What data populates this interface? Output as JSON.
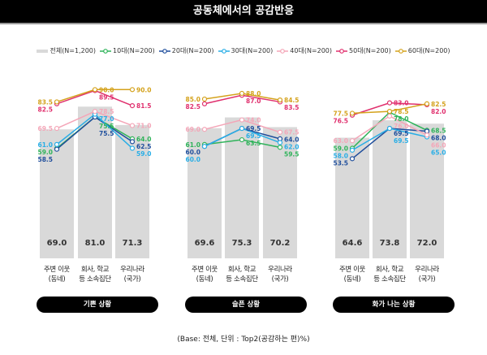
{
  "title": "공동체에서의 공감반응",
  "footnote": "(Base: 전체, 단위 : Top2(공감하는 편)%)",
  "chart_data": [
    {
      "type": "bar+line",
      "title": "기쁜 상황",
      "categories": [
        "주변 이웃\n(동네)",
        "회사, 학교\n등 소속집단",
        "우리나라\n(국가)"
      ],
      "bars": {
        "name": "전체(N=1,200)",
        "values": [
          69.0,
          81.0,
          71.3
        ]
      },
      "series": [
        {
          "name": "10대(N=200)",
          "values": [
            59.0,
            75.5,
            64.0
          ]
        },
        {
          "name": "20대(N=200)",
          "values": [
            58.5,
            75.5,
            62.5
          ]
        },
        {
          "name": "30대(N=200)",
          "values": [
            61.0,
            77.0,
            59.0
          ]
        },
        {
          "name": "40대(N=200)",
          "values": [
            69.5,
            78.5,
            71.0
          ]
        },
        {
          "name": "50대(N=200)",
          "values": [
            82.5,
            89.5,
            81.5
          ]
        },
        {
          "name": "60대(N=200)",
          "values": [
            83.5,
            90.0,
            90.0
          ]
        }
      ]
    },
    {
      "type": "bar+line",
      "title": "슬픈 상황",
      "categories": [
        "주변 이웃\n(동네)",
        "회사, 학교\n등 소속집단",
        "우리나라\n(국가)"
      ],
      "bars": {
        "name": "전체(N=1,200)",
        "values": [
          69.6,
          75.3,
          70.2
        ]
      },
      "series": [
        {
          "name": "10대(N=200)",
          "values": [
            61.0,
            63.5,
            59.5
          ]
        },
        {
          "name": "20대(N=200)",
          "values": [
            60.0,
            69.5,
            64.0
          ]
        },
        {
          "name": "30대(N=200)",
          "values": [
            60.0,
            69.5,
            62.0
          ]
        },
        {
          "name": "40대(N=200)",
          "values": [
            69.0,
            74.0,
            67.5
          ]
        },
        {
          "name": "50대(N=200)",
          "values": [
            82.5,
            87.0,
            83.5
          ]
        },
        {
          "name": "60대(N=200)",
          "values": [
            85.0,
            88.0,
            84.5
          ]
        }
      ]
    },
    {
      "type": "bar+line",
      "title": "화가 나는 상황",
      "categories": [
        "주변 이웃\n(동네)",
        "회사, 학교\n등 소속집단",
        "우리나라\n(국가)"
      ],
      "bars": {
        "name": "전체(N=1,200)",
        "values": [
          64.6,
          73.8,
          72.0
        ]
      },
      "series": [
        {
          "name": "10대(N=200)",
          "values": [
            59.0,
            78.0,
            68.5
          ]
        },
        {
          "name": "20대(N=200)",
          "values": [
            53.5,
            69.5,
            68.0
          ]
        },
        {
          "name": "30대(N=200)",
          "values": [
            58.0,
            69.5,
            65.0
          ]
        },
        {
          "name": "40대(N=200)",
          "values": [
            63.0,
            76.0,
            66.0
          ]
        },
        {
          "name": "50대(N=200)",
          "values": [
            76.5,
            83.0,
            82.0
          ]
        },
        {
          "name": "60대(N=200)",
          "values": [
            77.5,
            78.5,
            82.5
          ]
        }
      ]
    }
  ],
  "colors": {
    "bar": "#d9d9d9",
    "series": [
      "#2fb35a",
      "#1f4e9c",
      "#29aee6",
      "#f4a6b8",
      "#e0306e",
      "#d4a21c"
    ]
  },
  "legend": [
    "전체(N=1,200)",
    "10대(N=200)",
    "20대(N=200)",
    "30대(N=200)",
    "40대(N=200)",
    "50대(N=200)",
    "60대(N=200)"
  ]
}
